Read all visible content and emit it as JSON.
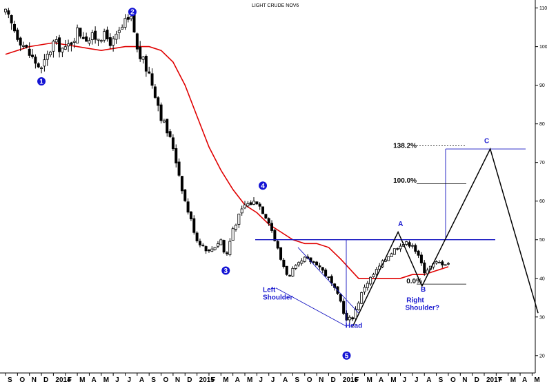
{
  "chart_data": {
    "type": "candlestick",
    "title": "LIGHT CRUDE NOV6",
    "y_ticks": [
      20,
      30,
      40,
      50,
      60,
      70,
      80,
      90,
      100,
      110
    ],
    "ylim": [
      18,
      111
    ],
    "x_ticks": [
      "S",
      "O",
      "N",
      "D",
      "2014",
      "F",
      "M",
      "A",
      "M",
      "J",
      "J",
      "A",
      "S",
      "O",
      "N",
      "D",
      "2015",
      "F",
      "M",
      "A",
      "M",
      "J",
      "J",
      "A",
      "S",
      "O",
      "N",
      "D",
      "2016",
      "F",
      "M",
      "A",
      "M",
      "J",
      "J",
      "A",
      "S",
      "O",
      "N",
      "D",
      "2017",
      "F",
      "M",
      "A",
      "M"
    ],
    "price_path": [
      [
        0,
        108.5
      ],
      [
        1,
        103
      ],
      [
        2,
        98
      ],
      [
        3,
        94
      ],
      [
        4,
        101
      ],
      [
        5,
        99
      ],
      [
        6,
        104
      ],
      [
        7,
        102
      ],
      [
        8,
        103
      ],
      [
        9,
        101
      ],
      [
        10,
        106
      ],
      [
        10.6,
        107
      ],
      [
        11,
        99
      ],
      [
        12,
        93
      ],
      [
        12.6,
        87
      ],
      [
        13,
        82
      ],
      [
        14,
        74
      ],
      [
        15,
        60
      ],
      [
        16,
        50
      ],
      [
        17,
        47
      ],
      [
        18,
        50
      ],
      [
        18.4,
        45
      ],
      [
        19,
        53
      ],
      [
        20,
        59
      ],
      [
        21,
        60
      ],
      [
        22,
        55
      ],
      [
        23,
        45
      ],
      [
        23.7,
        40
      ],
      [
        24,
        42
      ],
      [
        25,
        45
      ],
      [
        26,
        44
      ],
      [
        27,
        40
      ],
      [
        28,
        34
      ],
      [
        28.5,
        29
      ],
      [
        29,
        30
      ],
      [
        30,
        38
      ],
      [
        31,
        42
      ],
      [
        32,
        46
      ],
      [
        33,
        49
      ],
      [
        34,
        49
      ],
      [
        35,
        42
      ],
      [
        36,
        44
      ],
      [
        37,
        44
      ]
    ],
    "moving_average": [
      [
        0,
        98
      ],
      [
        2,
        100
      ],
      [
        4,
        101
      ],
      [
        6,
        100
      ],
      [
        8,
        99
      ],
      [
        10,
        100
      ],
      [
        12,
        100
      ],
      [
        13,
        99
      ],
      [
        14,
        96
      ],
      [
        15,
        90
      ],
      [
        16,
        82
      ],
      [
        17,
        74
      ],
      [
        18,
        68
      ],
      [
        19,
        63
      ],
      [
        20,
        59
      ],
      [
        21,
        57
      ],
      [
        22,
        54
      ],
      [
        23,
        52
      ],
      [
        24,
        50
      ],
      [
        25,
        49
      ],
      [
        26,
        49
      ],
      [
        27,
        48
      ],
      [
        28,
        45
      ],
      [
        28.6,
        43
      ],
      [
        29.5,
        40
      ],
      [
        31,
        40
      ],
      [
        32,
        40
      ],
      [
        33,
        40
      ],
      [
        34,
        41
      ],
      [
        35,
        41
      ],
      [
        36,
        42
      ],
      [
        37,
        43
      ]
    ],
    "wave_labels": [
      {
        "label": "1",
        "x": 3,
        "y": 91
      },
      {
        "label": "2",
        "x": 10.6,
        "y": 109
      },
      {
        "label": "3",
        "x": 18.4,
        "y": 42
      },
      {
        "label": "4",
        "x": 21.5,
        "y": 64
      },
      {
        "label": "5",
        "x": 28.5,
        "y": 20
      }
    ],
    "annotations": [
      {
        "text": "Left",
        "x": 21.5,
        "y": 36.5
      },
      {
        "text": "Shoulder",
        "x": 21.5,
        "y": 34.5
      },
      {
        "text": "Head",
        "x": 28.4,
        "y": 27.2
      },
      {
        "text": "Right",
        "x": 33.5,
        "y": 33.8
      },
      {
        "text": "Shoulder?",
        "x": 33.4,
        "y": 31.8
      }
    ],
    "wave_letters": [
      {
        "text": "A",
        "x": 32.8,
        "y": 53.5
      },
      {
        "text": "B",
        "x": 34.7,
        "y": 36.6
      },
      {
        "text": "C",
        "x": 40,
        "y": 75
      }
    ],
    "fib_labels": [
      {
        "text": "138.2%",
        "x": 32.4,
        "y": 73.8
      },
      {
        "text": "100.0%",
        "x": 32.4,
        "y": 64.8
      },
      {
        "text": "0.0%",
        "x": 33.5,
        "y": 38.7
      }
    ],
    "neckline": 50,
    "forecast_path": [
      [
        29,
        27.5
      ],
      [
        32.8,
        52
      ],
      [
        34.8,
        38
      ],
      [
        40.5,
        73.5
      ],
      [
        44.5,
        31
      ]
    ]
  }
}
